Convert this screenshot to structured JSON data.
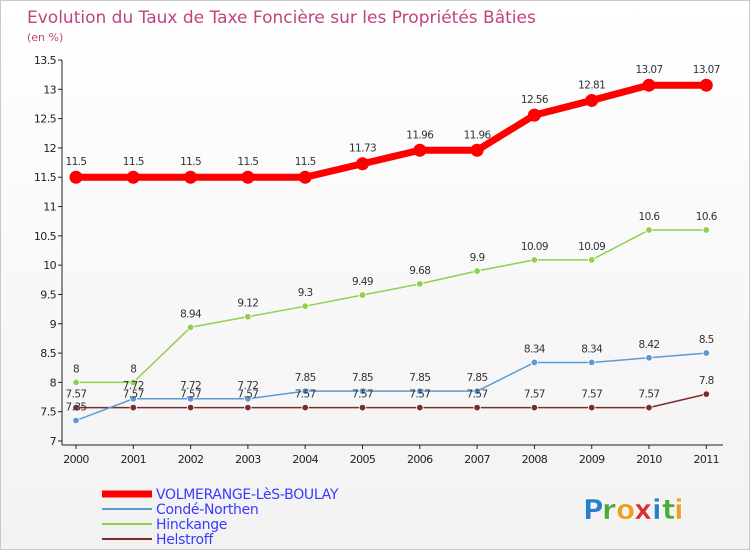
{
  "chart_data": {
    "type": "line",
    "title": "Evolution du Taux de Taxe Foncière sur les Propriétés Bâties",
    "subtitle": "(en %)",
    "xlabel": "",
    "ylabel": "",
    "x": [
      "2000",
      "2001",
      "2002",
      "2003",
      "2004",
      "2005",
      "2006",
      "2007",
      "2008",
      "2009",
      "2010",
      "2011"
    ],
    "ylim": [
      7,
      13.5
    ],
    "yticks": [
      "7",
      "7.5",
      "8",
      "8.5",
      "9",
      "9.5",
      "10",
      "10.5",
      "11",
      "11.5",
      "12",
      "12.5",
      "13",
      "13.5"
    ],
    "grid": false,
    "legend_position": "bottom-left",
    "series": [
      {
        "name": "VOLMERANGE-LèS-BOULAY",
        "color": "#ff0000",
        "values": [
          11.5,
          11.5,
          11.5,
          11.5,
          11.5,
          11.73,
          11.96,
          11.96,
          12.56,
          12.81,
          13.07,
          13.07
        ],
        "labels": [
          "11.5",
          "11.5",
          "11.5",
          "11.5",
          "11.5",
          "11.73",
          "11.96",
          "11.96",
          "12.56",
          "12.81",
          "13.07",
          "13.07"
        ]
      },
      {
        "name": "Condé-Northen",
        "color": "#5b9bd5",
        "values": [
          7.35,
          7.72,
          7.72,
          7.72,
          7.85,
          7.85,
          7.85,
          7.85,
          8.34,
          8.34,
          8.42,
          8.5
        ],
        "labels": [
          "7.35",
          "7.72",
          "7.72",
          "7.72",
          "7.85",
          "7.85",
          "7.85",
          "7.85",
          "8.34",
          "8.34",
          "8.42",
          "8.5"
        ]
      },
      {
        "name": "Hinckange",
        "color": "#8fd14f",
        "values": [
          8,
          8,
          8.94,
          9.12,
          9.3,
          9.49,
          9.68,
          9.9,
          10.09,
          10.09,
          10.6,
          10.6
        ],
        "labels": [
          "8",
          "8",
          "8.94",
          "9.12",
          "9.3",
          "9.49",
          "9.68",
          "9.9",
          "10.09",
          "10.09",
          "10.6",
          "10.6"
        ]
      },
      {
        "name": "Helstroff",
        "color": "#7b2c2c",
        "values": [
          7.57,
          7.57,
          7.57,
          7.57,
          7.57,
          7.57,
          7.57,
          7.57,
          7.57,
          7.57,
          7.57,
          7.8
        ],
        "labels": [
          "7.57",
          "7.57",
          "7.57",
          "7.57",
          "7.57",
          "7.57",
          "7.57",
          "7.57",
          "7.57",
          "7.57",
          "7.57",
          "7.8"
        ]
      }
    ]
  },
  "logo": {
    "letters": [
      "P",
      "r",
      "o",
      "x",
      "i",
      "t",
      "i"
    ],
    "colors": [
      "#2a7fc9",
      "#4caa3a",
      "#f0a020",
      "#d83030",
      "#2a7fc9",
      "#4caa3a",
      "#f0a020"
    ]
  }
}
